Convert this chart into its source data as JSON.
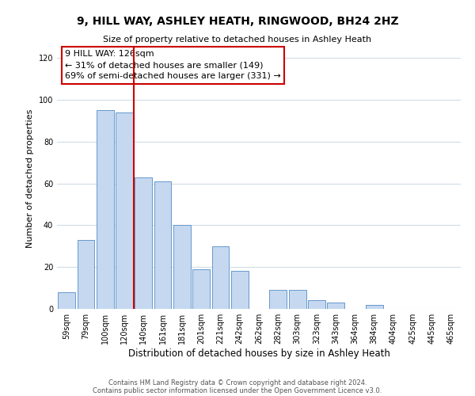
{
  "title": "9, HILL WAY, ASHLEY HEATH, RINGWOOD, BH24 2HZ",
  "subtitle": "Size of property relative to detached houses in Ashley Heath",
  "xlabel": "Distribution of detached houses by size in Ashley Heath",
  "ylabel": "Number of detached properties",
  "bin_labels": [
    "59sqm",
    "79sqm",
    "100sqm",
    "120sqm",
    "140sqm",
    "161sqm",
    "181sqm",
    "201sqm",
    "221sqm",
    "242sqm",
    "262sqm",
    "282sqm",
    "303sqm",
    "323sqm",
    "343sqm",
    "364sqm",
    "384sqm",
    "404sqm",
    "425sqm",
    "445sqm",
    "465sqm"
  ],
  "bar_values": [
    8,
    33,
    95,
    94,
    63,
    61,
    40,
    19,
    30,
    18,
    0,
    9,
    9,
    4,
    3,
    0,
    2,
    0,
    0,
    0,
    0
  ],
  "bar_color": "#c5d8f0",
  "bar_edge_color": "#6699cc",
  "vline_color": "#cc0000",
  "ylim": [
    0,
    125
  ],
  "yticks": [
    0,
    20,
    40,
    60,
    80,
    100,
    120
  ],
  "annotation_title": "9 HILL WAY: 126sqm",
  "annotation_line1": "← 31% of detached houses are smaller (149)",
  "annotation_line2": "69% of semi-detached houses are larger (331) →",
  "annotation_box_color": "#cc0000",
  "footer_line1": "Contains HM Land Registry data © Crown copyright and database right 2024.",
  "footer_line2": "Contains public sector information licensed under the Open Government Licence v3.0.",
  "background_color": "#ffffff",
  "grid_color": "#d0dce8",
  "vline_index": 3.5
}
